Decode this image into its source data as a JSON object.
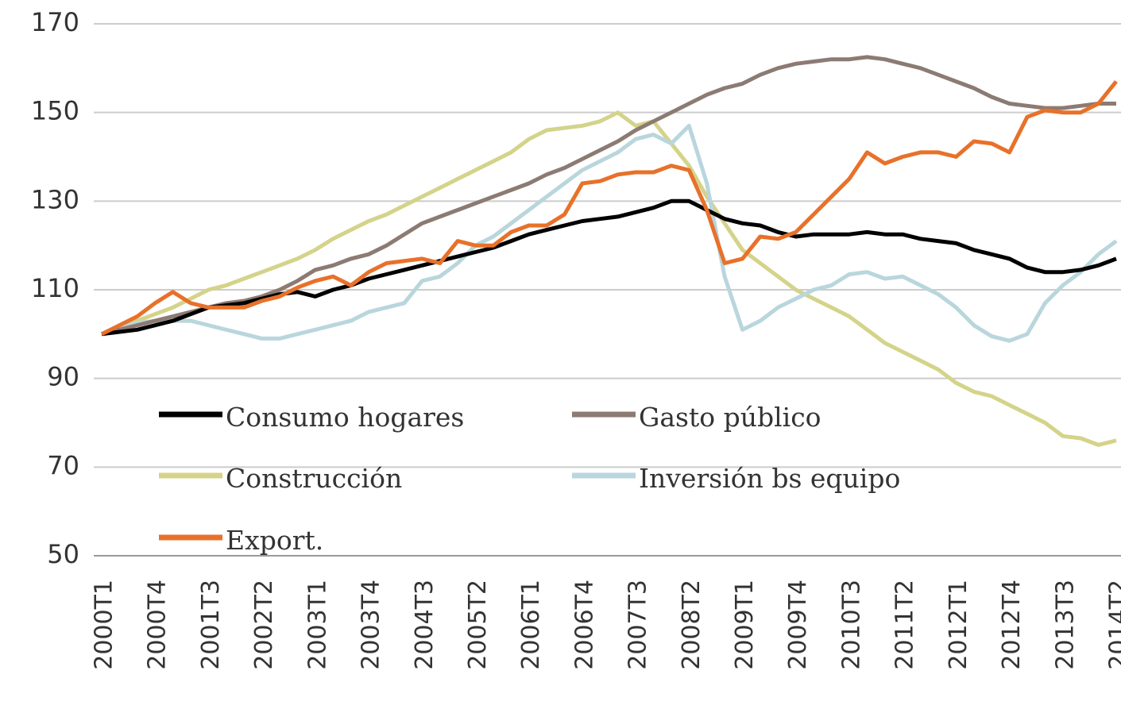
{
  "chart_data": {
    "type": "line",
    "categories": [
      "2000T1",
      null,
      null,
      "2000T4",
      null,
      null,
      "2001T3",
      null,
      null,
      "2002T2",
      null,
      null,
      "2003T1",
      null,
      null,
      "2003T4",
      null,
      null,
      "2004T3",
      null,
      null,
      "2005T2",
      null,
      null,
      "2006T1",
      null,
      null,
      "2006T4",
      null,
      null,
      "2007T3",
      null,
      null,
      "2008T2",
      null,
      null,
      "2009T1",
      null,
      null,
      "2009T4",
      null,
      null,
      "2010T3",
      null,
      null,
      "2011T2",
      null,
      null,
      "2012T1",
      null,
      null,
      "2012T4",
      null,
      null,
      "2013T3",
      null,
      null,
      "2014T2"
    ],
    "series": [
      {
        "name": "Consumo hogares",
        "color": "#000000",
        "values": [
          100,
          100.5,
          101,
          102,
          103,
          104.5,
          106,
          106.5,
          107,
          108,
          109,
          109.5,
          108.5,
          110,
          111,
          112.5,
          113.5,
          114.5,
          115.5,
          116.5,
          117.5,
          118.5,
          119.5,
          121,
          122.5,
          123.5,
          124.5,
          125.5,
          126,
          126.5,
          127.5,
          128.5,
          130,
          130,
          128,
          126,
          125,
          124.5,
          123,
          122,
          122.5,
          122.5,
          122.5,
          123,
          122.5,
          122.5,
          121.5,
          121,
          120.5,
          119,
          118,
          117,
          115,
          114,
          114,
          114.5,
          115.5,
          117
        ]
      },
      {
        "name": "Gasto público",
        "color": "#8c7b73",
        "values": [
          100,
          101,
          102,
          103,
          104,
          105,
          106,
          107,
          107.5,
          108.5,
          110,
          112,
          114.5,
          115.5,
          117,
          118,
          120,
          122.5,
          125,
          126.5,
          128,
          129.5,
          131,
          132.5,
          134,
          136,
          137.5,
          139.5,
          141.5,
          143.5,
          146,
          148,
          150,
          152,
          154,
          155.5,
          156.5,
          158.5,
          160,
          161,
          161.5,
          162,
          162,
          162.5,
          162,
          161,
          160,
          158.5,
          157,
          155.5,
          153.5,
          152,
          151.5,
          151,
          151,
          151.5,
          152,
          152
        ]
      },
      {
        "name": "Construcción",
        "color": "#d4d38a",
        "values": [
          100,
          101.5,
          103,
          104.5,
          106,
          108,
          110,
          111,
          112.5,
          114,
          115.5,
          117,
          119,
          121.5,
          123.5,
          125.5,
          127,
          129,
          131,
          133,
          135,
          137,
          139,
          141,
          144,
          146,
          146.5,
          147,
          148,
          150,
          147,
          148,
          143,
          138,
          131,
          125,
          119,
          116,
          113,
          110,
          108,
          106,
          104,
          101,
          98,
          96,
          94,
          92,
          89,
          87,
          86,
          84,
          82,
          80,
          77,
          76.5,
          75,
          76
        ]
      },
      {
        "name": "Inversión bs equipo",
        "color": "#b9d6dd",
        "values": [
          100,
          101.5,
          102.5,
          103,
          103,
          103,
          102,
          101,
          100,
          99,
          99,
          100,
          101,
          102,
          103,
          105,
          106,
          107,
          112,
          113,
          116,
          120,
          122,
          125,
          128,
          131,
          134,
          137,
          139,
          141,
          144,
          145,
          143,
          147,
          134,
          113,
          101,
          103,
          106,
          108,
          110,
          111,
          113.5,
          114,
          112.5,
          113,
          111,
          109,
          106,
          102,
          99.5,
          98.5,
          100,
          107,
          111,
          114,
          118,
          121
        ]
      },
      {
        "name": "Export.",
        "color": "#e8712a",
        "values": [
          100,
          102,
          104,
          107,
          109.5,
          107,
          106,
          106,
          106,
          107.5,
          108.5,
          110.5,
          112,
          113,
          111,
          114,
          116,
          116.5,
          117,
          116,
          121,
          120,
          120,
          123,
          124.5,
          124.5,
          127,
          134,
          134.5,
          136,
          136.5,
          136.5,
          138,
          137,
          128,
          116,
          117,
          122,
          121.5,
          123,
          127,
          131,
          135,
          141,
          138.5,
          140,
          141,
          141,
          140,
          143.5,
          143,
          141,
          149,
          150.5,
          150,
          150,
          152,
          157
        ]
      }
    ],
    "ylim": [
      50,
      170
    ],
    "yticks": [
      50,
      70,
      90,
      110,
      130,
      150,
      170
    ],
    "grid": true
  }
}
